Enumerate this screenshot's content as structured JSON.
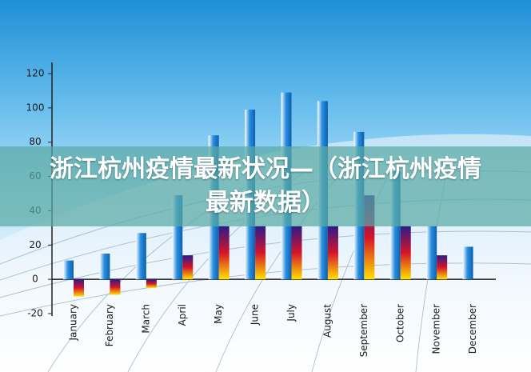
{
  "chart_data": {
    "type": "bar",
    "title": "浙江杭州疫情最新状况—（浙江杭州疫情最新数据）",
    "categories": [
      "January",
      "February",
      "March",
      "April",
      "May",
      "June",
      "July",
      "August",
      "September",
      "October",
      "November",
      "December"
    ],
    "series": [
      {
        "color": "#2b8fe0",
        "values": [
          11,
          15,
          27,
          49,
          84,
          99,
          109,
          104,
          86,
          63,
          31,
          19
        ]
      },
      {
        "color": "#d4142a",
        "values": [
          -10,
          -9,
          -5,
          14,
          31,
          31,
          31,
          31,
          49,
          31,
          14,
          null
        ]
      }
    ],
    "ylim": [
      -20,
      120
    ],
    "yticks": [
      -20,
      0,
      20,
      40,
      60,
      80,
      100,
      120
    ]
  }
}
